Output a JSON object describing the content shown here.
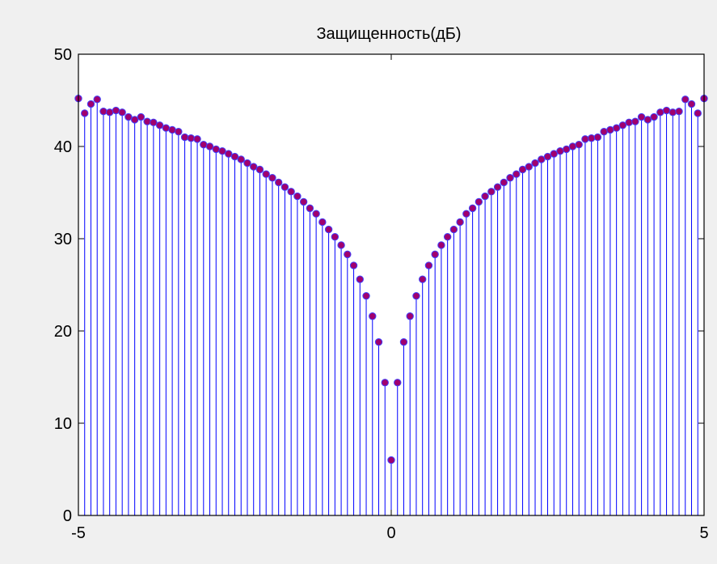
{
  "chart_data": {
    "type": "stem",
    "title": "Защищенность(дБ)",
    "xlim": [
      -5,
      5
    ],
    "ylim": [
      0,
      50
    ],
    "x_ticks": [
      -5,
      0,
      5
    ],
    "y_ticks": [
      0,
      10,
      20,
      30,
      40,
      50
    ],
    "x_tick_labels": [
      "-5",
      "0",
      "5"
    ],
    "y_tick_labels": [
      "0",
      "10",
      "20",
      "30",
      "40",
      "50"
    ],
    "stem_color": "#0000ff",
    "marker_fill": "#a0006e",
    "marker_edge": "#4040ff",
    "background": "#ffffff",
    "figure_background": "#f0f0f0",
    "x": [
      -5.0,
      -4.9,
      -4.8,
      -4.7,
      -4.6,
      -4.5,
      -4.4,
      -4.3,
      -4.2,
      -4.1,
      -4.0,
      -3.9,
      -3.8,
      -3.7,
      -3.6,
      -3.5,
      -3.4,
      -3.3,
      -3.2,
      -3.1,
      -3.0,
      -2.9,
      -2.8,
      -2.7,
      -2.6,
      -2.5,
      -2.4,
      -2.3,
      -2.2,
      -2.1,
      -2.0,
      -1.9,
      -1.8,
      -1.7,
      -1.6,
      -1.5,
      -1.4,
      -1.3,
      -1.2,
      -1.1,
      -1.0,
      -0.9,
      -0.8,
      -0.7,
      -0.6,
      -0.5,
      -0.4,
      -0.3,
      -0.2,
      -0.1,
      0.0,
      0.1,
      0.2,
      0.3,
      0.4,
      0.5,
      0.6,
      0.7,
      0.8,
      0.9,
      1.0,
      1.1,
      1.2,
      1.3,
      1.4,
      1.5,
      1.6,
      1.7,
      1.8,
      1.9,
      2.0,
      2.1,
      2.2,
      2.3,
      2.4,
      2.5,
      2.6,
      2.7,
      2.8,
      2.9,
      3.0,
      3.1,
      3.2,
      3.3,
      3.4,
      3.5,
      3.6,
      3.7,
      3.8,
      3.9,
      4.0,
      4.1,
      4.2,
      4.3,
      4.4,
      4.5,
      4.6,
      4.7,
      4.8,
      4.9,
      5.0
    ],
    "y": [
      45.2,
      43.6,
      44.6,
      45.1,
      43.8,
      43.7,
      43.9,
      43.7,
      43.2,
      42.9,
      43.2,
      42.7,
      42.6,
      42.3,
      42.0,
      41.8,
      41.6,
      41.0,
      40.9,
      40.8,
      40.2,
      40.0,
      39.7,
      39.5,
      39.2,
      38.9,
      38.6,
      38.2,
      37.8,
      37.5,
      37.0,
      36.6,
      36.1,
      35.6,
      35.1,
      34.6,
      34.0,
      33.3,
      32.7,
      31.8,
      31.0,
      30.2,
      29.3,
      28.3,
      27.1,
      25.6,
      23.8,
      21.6,
      18.8,
      14.4,
      6.0,
      14.4,
      18.8,
      21.6,
      23.8,
      25.6,
      27.1,
      28.3,
      29.3,
      30.2,
      31.0,
      31.8,
      32.7,
      33.3,
      34.0,
      34.6,
      35.1,
      35.6,
      36.1,
      36.6,
      37.0,
      37.5,
      37.8,
      38.2,
      38.6,
      38.9,
      39.2,
      39.5,
      39.7,
      40.0,
      40.2,
      40.8,
      40.9,
      41.0,
      41.6,
      41.8,
      42.0,
      42.3,
      42.6,
      42.7,
      43.2,
      42.9,
      43.2,
      43.7,
      43.9,
      43.7,
      43.8,
      45.1,
      44.6,
      43.6,
      45.2
    ]
  }
}
